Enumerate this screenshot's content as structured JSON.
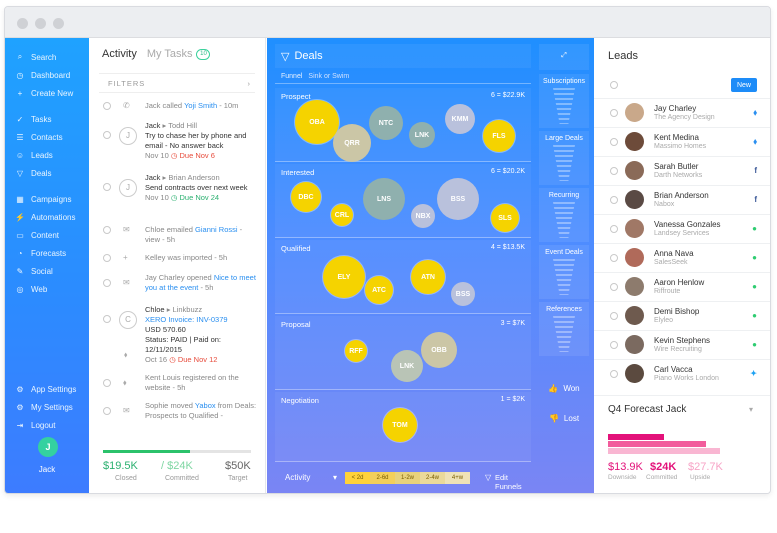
{
  "sidebar": {
    "items": [
      {
        "label": "Search",
        "icon": "search-icon"
      },
      {
        "label": "Dashboard",
        "icon": "dashboard-icon"
      },
      {
        "label": "Create New",
        "icon": "plus-icon"
      },
      {
        "label": "Tasks",
        "icon": "check-icon"
      },
      {
        "label": "Contacts",
        "icon": "contacts-icon"
      },
      {
        "label": "Leads",
        "icon": "user-icon"
      },
      {
        "label": "Deals",
        "icon": "funnel-icon"
      },
      {
        "label": "Campaigns",
        "icon": "campaign-icon"
      },
      {
        "label": "Automations",
        "icon": "automation-icon"
      },
      {
        "label": "Content",
        "icon": "content-icon"
      },
      {
        "label": "Forecasts",
        "icon": "forecast-icon"
      },
      {
        "label": "Social",
        "icon": "social-icon"
      },
      {
        "label": "Web",
        "icon": "globe-icon"
      },
      {
        "label": "App Settings",
        "icon": "gear-icon"
      },
      {
        "label": "My Settings",
        "icon": "settings-icon"
      },
      {
        "label": "Logout",
        "icon": "logout-icon"
      }
    ],
    "user": {
      "initial": "J",
      "name": "Jack"
    }
  },
  "activity": {
    "tab_activity": "Activity",
    "tab_tasks": "My Tasks",
    "tasks_count": "10",
    "filters": "FILTERS",
    "items": [
      {
        "who": "Jack",
        "action": " called ",
        "target": "Yoji Smith",
        "time": " - 10m"
      },
      {
        "who": "Jack",
        "arrow": " ▸ Todd Hill",
        "body": "Try to chase her by phone and email - No answer back",
        "date": "Nov 10",
        "due": "Due Nov 6"
      },
      {
        "who": "Jack",
        "arrow": " ▸ Brian Anderson",
        "body": "Send contracts over next week",
        "date": "Nov 10",
        "due": "Due Nov 24"
      },
      {
        "who": "Chloe",
        "action": " emailed ",
        "target": "Gianni Rossi",
        "time": " - view - 5h"
      },
      {
        "who": "Kelley",
        "action": " was imported",
        "time": " - 5h"
      },
      {
        "who": "Jay Charley",
        "action": " opened ",
        "target": "Nice to meet you at the event",
        "time": " - 5h"
      },
      {
        "who": "Chloe",
        "arrow": " ▸ Linkbuzz",
        "line1": "XERO Invoice: INV-0379",
        "line2": "USD 570.60",
        "line3": "Status: PAID | Paid on: 12/11/2015",
        "date": "Oct 16",
        "due": "Due Nov 12"
      },
      {
        "who": "Kent Louis",
        "action": " registered on the website",
        "time": " - 5h"
      },
      {
        "who": "Sophie",
        "action": " moved ",
        "target": "Yabox",
        "rest": " from Deals: Prospects to Qualified -"
      }
    ],
    "footer": {
      "closed_value": "$19.5K",
      "closed_label": "Closed",
      "committed_value": "/ $24K",
      "committed_label": "Committed",
      "target_value": "$50K",
      "target_label": "Target",
      "progress": 0.59
    }
  },
  "deals": {
    "title": "Deals",
    "sub_funnel": "Funnel",
    "sub_mode": "Sink or Swim",
    "stages": [
      {
        "name": "Prospect",
        "summary": "6 = $22.9K",
        "bubbles": [
          "OBA",
          "QRR",
          "NTC",
          "LNK",
          "KMM",
          "FLS"
        ]
      },
      {
        "name": "Interested",
        "summary": "6 = $20.2K",
        "bubbles": [
          "DBC",
          "CRL",
          "LNS",
          "NBX",
          "BSS",
          "SLS"
        ]
      },
      {
        "name": "Qualified",
        "summary": "4 = $13.5K",
        "bubbles": [
          "ELY",
          "ATC",
          "ATN",
          "BSS"
        ]
      },
      {
        "name": "Proposal",
        "summary": "3 = $7K",
        "bubbles": [
          "RFF",
          "LNK",
          "OBB"
        ]
      },
      {
        "name": "Negotiation",
        "summary": "1 = $2K",
        "bubbles": [
          "TOM"
        ]
      }
    ],
    "right": {
      "sections": [
        "Subscriptions",
        "Large Deals",
        "Recurring",
        "Event Deals",
        "References"
      ],
      "won": "Won",
      "lost": "Lost"
    },
    "footer": {
      "activity": "Activity",
      "ranges": [
        "< 2d",
        "2-6d",
        "1-2w",
        "2-4w",
        "4+w"
      ],
      "edit": "Edit Funnels"
    }
  },
  "leads": {
    "title": "Leads",
    "new_label": "New",
    "rows": [
      {
        "name": "Jay Charley",
        "company": "The Agency Design",
        "source": "drop-icon",
        "color": "#2a8ff0"
      },
      {
        "name": "Kent Medina",
        "company": "Massimo Homes",
        "source": "drop-icon",
        "color": "#2a8ff0"
      },
      {
        "name": "Sarah Butler",
        "company": "Darth Networks",
        "source": "facebook-icon",
        "color": "#3b5998"
      },
      {
        "name": "Brian Anderson",
        "company": "Nabox",
        "source": "facebook-icon",
        "color": "#3b5998"
      },
      {
        "name": "Vanessa Gonzales",
        "company": "Landsey Services",
        "source": "web-icon",
        "color": "#2ecc71"
      },
      {
        "name": "Anna Nava",
        "company": "SalesSeek",
        "source": "web-icon",
        "color": "#2ecc71"
      },
      {
        "name": "Aaron Henlow",
        "company": "Riffroute",
        "source": "web-icon",
        "color": "#2ecc71"
      },
      {
        "name": "Demi Bishop",
        "company": "Elyleo",
        "source": "web-icon",
        "color": "#2ecc71"
      },
      {
        "name": "Kevin Stephens",
        "company": "Wire Recruiting",
        "source": "web-icon",
        "color": "#2ecc71"
      },
      {
        "name": "Carl Vacca",
        "company": "Piano Works London",
        "source": "twitter-icon",
        "color": "#1da1f2"
      }
    ],
    "forecast": {
      "title": "Q4 Forecast Jack",
      "downside_value": "$13.9K",
      "downside_label": "Downside",
      "committed_value": "$24K",
      "committed_label": "Committed",
      "upside_value": "$27.7K",
      "upside_label": "Upside"
    }
  }
}
